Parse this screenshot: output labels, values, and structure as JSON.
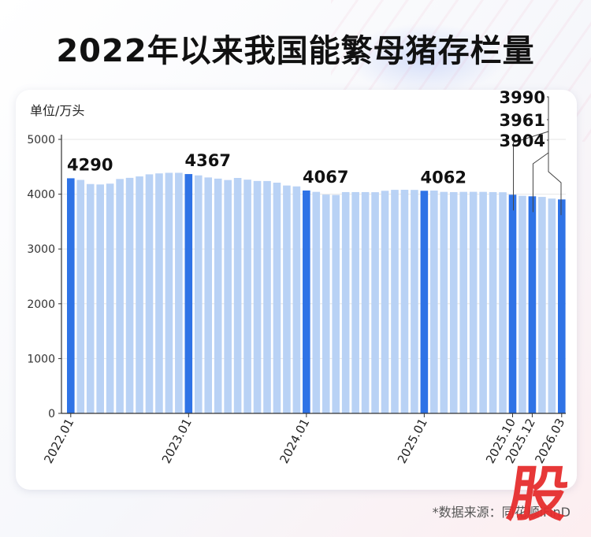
{
  "title": "2022年以来我国能繁母猪存栏量",
  "source": "*数据来源：同花顺iFinD",
  "watermark": "股",
  "colors": {
    "highlight": "#2f73e6",
    "normal": "#b9d2f5",
    "axis": "#333333",
    "grid": "#e6e6e6"
  },
  "chart_data": {
    "type": "bar",
    "title": "2022年以来我国能繁母猪存栏量",
    "unit_label": "单位/万头",
    "ylim": [
      0,
      5000
    ],
    "y_ticks": [
      0,
      1000,
      2000,
      3000,
      4000,
      5000
    ],
    "grid": true,
    "x_tick_labels": [
      "2022.01",
      "2023.01",
      "2024.01",
      "2025.01",
      "2025.10",
      "2025.12",
      "2026.03"
    ],
    "categories": [
      "2022.01",
      "2022.02",
      "2022.03",
      "2022.04",
      "2022.05",
      "2022.06",
      "2022.07",
      "2022.08",
      "2022.09",
      "2022.10",
      "2022.11",
      "2022.12",
      "2023.01",
      "2023.02",
      "2023.03",
      "2023.04",
      "2023.05",
      "2023.06",
      "2023.07",
      "2023.08",
      "2023.09",
      "2023.10",
      "2023.11",
      "2023.12",
      "2024.01",
      "2024.02",
      "2024.03",
      "2024.04",
      "2024.05",
      "2024.06",
      "2024.07",
      "2024.08",
      "2024.09",
      "2024.10",
      "2024.11",
      "2024.12",
      "2025.01",
      "2025.02",
      "2025.03",
      "2025.04",
      "2025.05",
      "2025.06",
      "2025.07",
      "2025.08",
      "2025.09",
      "2025.10",
      "2025.11",
      "2025.12",
      "2026.01",
      "2026.02",
      "2026.03"
    ],
    "values": [
      4290,
      4260,
      4185,
      4177,
      4192,
      4277,
      4298,
      4324,
      4362,
      4379,
      4390,
      4390,
      4367,
      4343,
      4305,
      4284,
      4258,
      4296,
      4265,
      4241,
      4240,
      4210,
      4158,
      4142,
      4067,
      4042,
      3992,
      3986,
      4038,
      4038,
      4038,
      4036,
      4062,
      4079,
      4080,
      4078,
      4062,
      4066,
      4042,
      4038,
      4042,
      4043,
      4042,
      4038,
      4035,
      3990,
      3970,
      3961,
      3950,
      3920,
      3904
    ],
    "highlighted": [
      "2022.01",
      "2023.01",
      "2024.01",
      "2025.01",
      "2025.10",
      "2025.12",
      "2026.03"
    ],
    "data_labels": [
      {
        "category": "2022.01",
        "text": "4290"
      },
      {
        "category": "2023.01",
        "text": "4367"
      },
      {
        "category": "2024.01",
        "text": "4067"
      },
      {
        "category": "2025.01",
        "text": "4062"
      },
      {
        "category": "2025.10",
        "text": "3990"
      },
      {
        "category": "2025.12",
        "text": "3961"
      },
      {
        "category": "2026.03",
        "text": "3904"
      }
    ]
  }
}
